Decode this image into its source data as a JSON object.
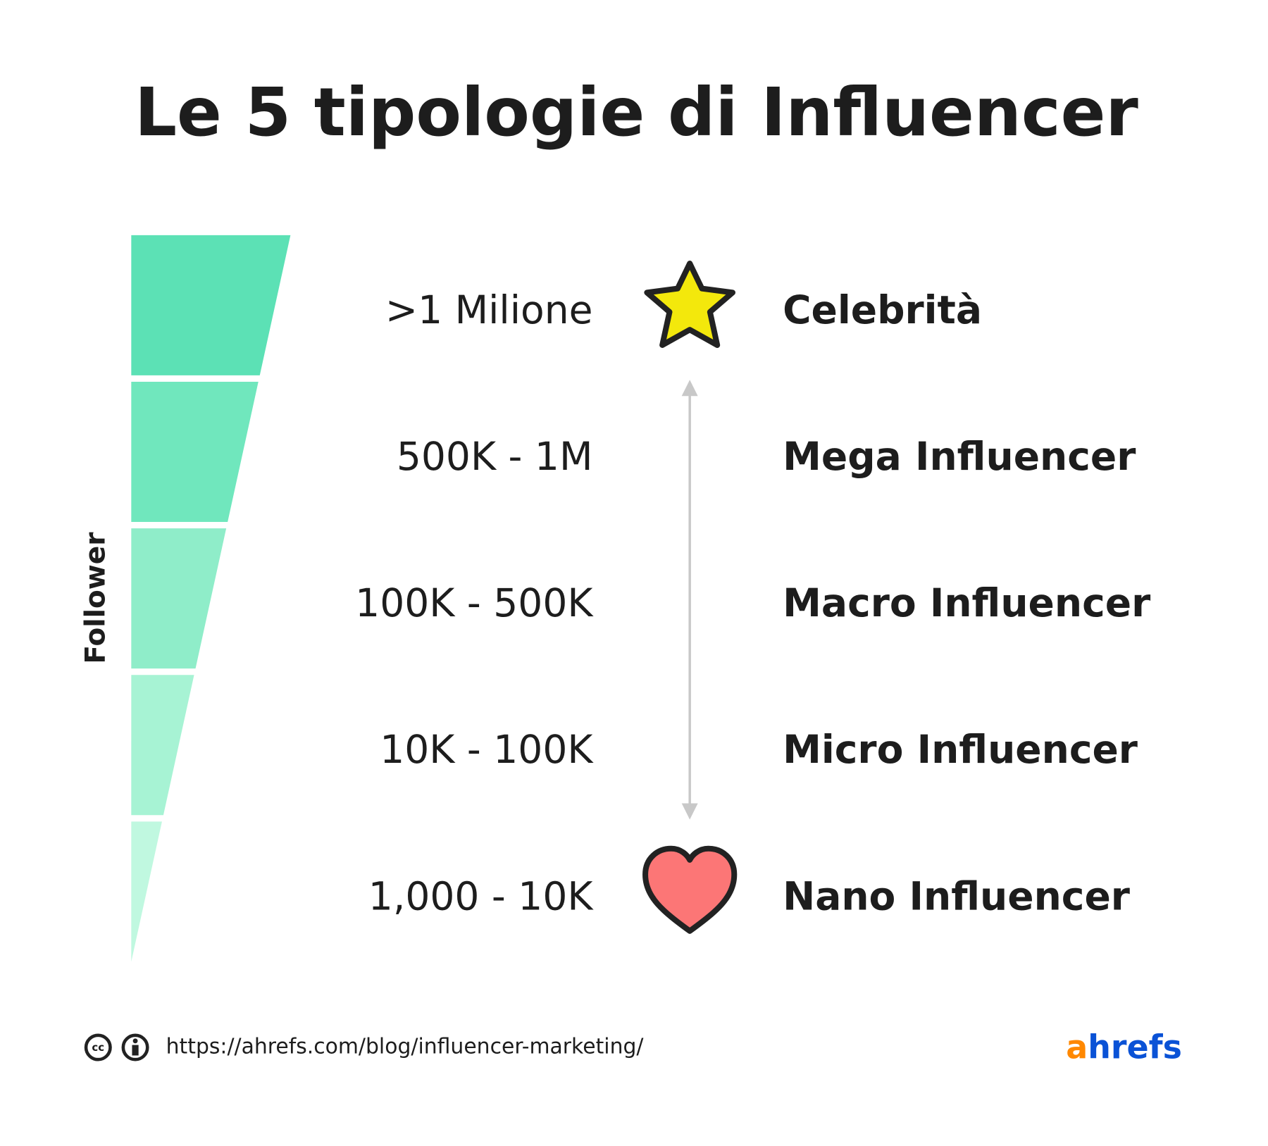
{
  "header": {
    "title": "Le 5 tipologie di Influencer"
  },
  "axis_label": "Follower",
  "tiers": [
    {
      "range": ">1 Milione",
      "name": "Celebrità",
      "color": "#5ce1b5"
    },
    {
      "range": "500K - 1M",
      "name": "Mega Influencer",
      "color": "#70e7bd"
    },
    {
      "range": "100K - 500K",
      "name": "Macro Influencer",
      "color": "#8fedc9"
    },
    {
      "range": "10K - 100K",
      "name": "Micro Influencer",
      "color": "#a7f3d4"
    },
    {
      "range": "1,000 - 10K",
      "name": "Nano Influencer",
      "color": "#c0f8e0"
    }
  ],
  "footer": {
    "url": "https://ahrefs.com/blog/influencer-marketing/",
    "logo": {
      "a": "a",
      "hrefs": "hrefs"
    }
  }
}
